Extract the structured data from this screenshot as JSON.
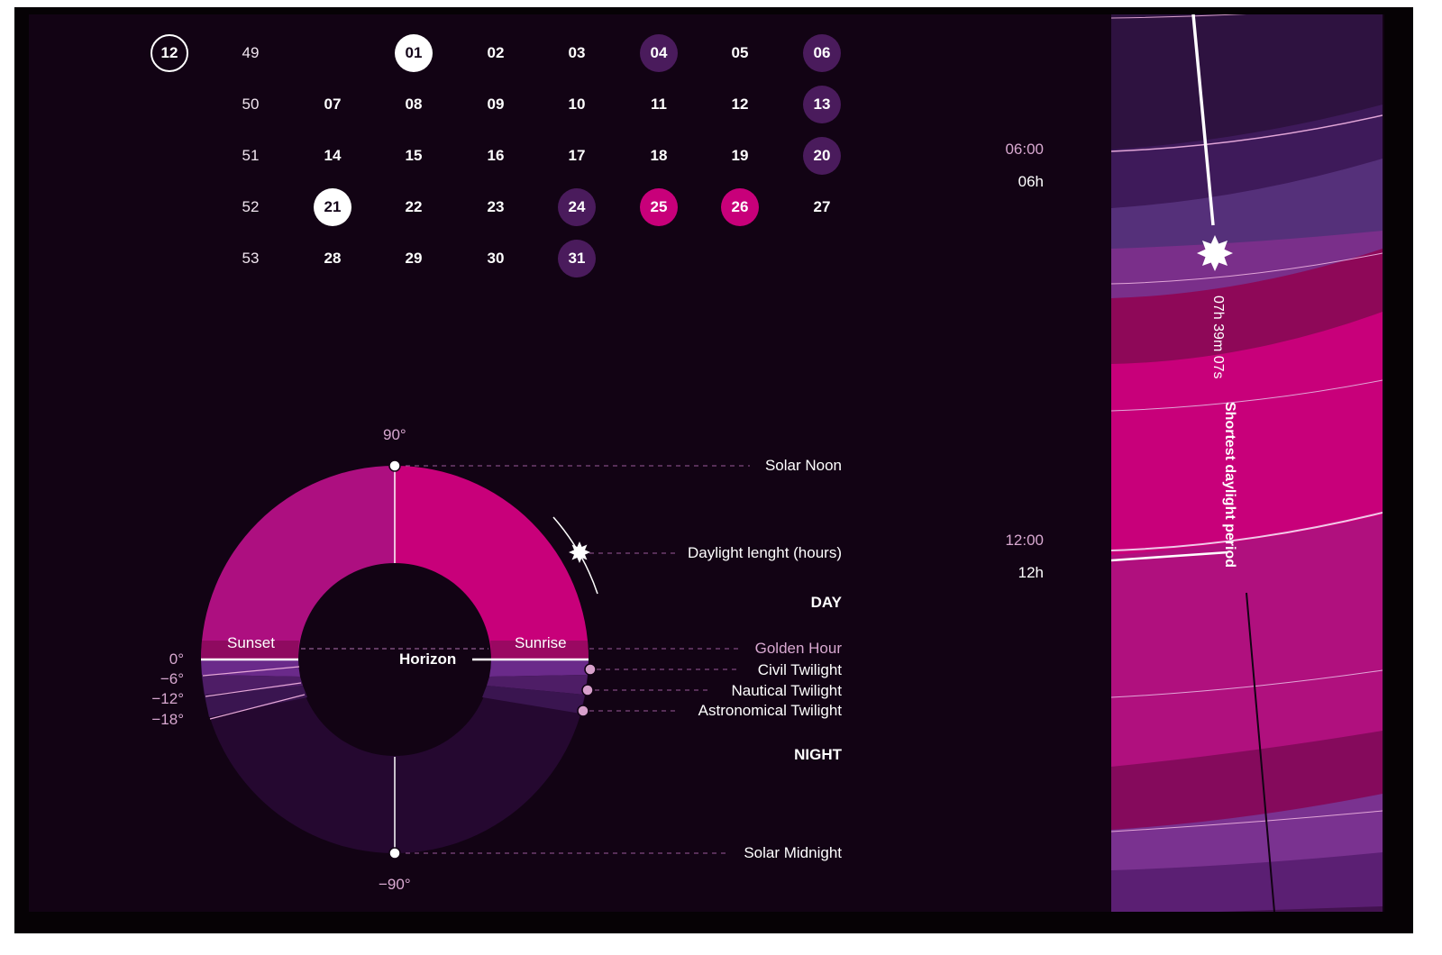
{
  "calendar": {
    "month_badge": "12",
    "rows": [
      {
        "week": "49",
        "days": [
          {
            "d": "",
            "c": ""
          },
          {
            "d": "01",
            "c": "white"
          },
          {
            "d": "02",
            "c": ""
          },
          {
            "d": "03",
            "c": ""
          },
          {
            "d": "04",
            "c": "purple"
          },
          {
            "d": "05",
            "c": ""
          },
          {
            "d": "06",
            "c": "purple"
          }
        ]
      },
      {
        "week": "50",
        "days": [
          {
            "d": "07",
            "c": ""
          },
          {
            "d": "08",
            "c": ""
          },
          {
            "d": "09",
            "c": ""
          },
          {
            "d": "10",
            "c": ""
          },
          {
            "d": "11",
            "c": ""
          },
          {
            "d": "12",
            "c": ""
          },
          {
            "d": "13",
            "c": "purple"
          }
        ]
      },
      {
        "week": "51",
        "days": [
          {
            "d": "14",
            "c": ""
          },
          {
            "d": "15",
            "c": ""
          },
          {
            "d": "16",
            "c": ""
          },
          {
            "d": "17",
            "c": ""
          },
          {
            "d": "18",
            "c": ""
          },
          {
            "d": "19",
            "c": ""
          },
          {
            "d": "20",
            "c": "purple"
          }
        ]
      },
      {
        "week": "52",
        "days": [
          {
            "d": "21",
            "c": "white"
          },
          {
            "d": "22",
            "c": ""
          },
          {
            "d": "23",
            "c": ""
          },
          {
            "d": "24",
            "c": "purple"
          },
          {
            "d": "25",
            "c": "pink"
          },
          {
            "d": "26",
            "c": "pink"
          },
          {
            "d": "27",
            "c": ""
          }
        ]
      },
      {
        "week": "53",
        "days": [
          {
            "d": "28",
            "c": ""
          },
          {
            "d": "29",
            "c": ""
          },
          {
            "d": "30",
            "c": ""
          },
          {
            "d": "31",
            "c": "purple"
          },
          {
            "d": "",
            "c": ""
          },
          {
            "d": "",
            "c": ""
          },
          {
            "d": "",
            "c": ""
          }
        ]
      }
    ]
  },
  "legend": {
    "deg_top": "90°",
    "deg_bottom": "−90°",
    "deg_scale": [
      "0°",
      "−6°",
      "−12°",
      "−18°"
    ],
    "sunset": "Sunset",
    "sunrise": "Sunrise",
    "horizon": "Horizon",
    "solar_noon": "Solar Noon",
    "daylight_length": "Daylight lenght (hours)",
    "day": "DAY",
    "golden_hour": "Golden Hour",
    "civil_twilight": "Civil Twilight",
    "nautical_twilight": "Nautical Twilight",
    "astronomical_twilight": "Astronomical Twilight",
    "night": "NIGHT",
    "solar_midnight": "Solar Midnight"
  },
  "time_axis": [
    {
      "clock": "06:00",
      "hours": "06h"
    },
    {
      "clock": "12:00",
      "hours": "12h"
    }
  ],
  "annotation": {
    "duration": "07h 39m 07s",
    "label": "Shortest daylight period"
  },
  "colors": {
    "background": "#120314",
    "day": "#c8007a",
    "day_dim": "#ad0f80",
    "golden": "#9a0862",
    "civil": "#6a2a8a",
    "nautical": "#4e1d66",
    "astronomical": "#3a1550",
    "night": "#250830"
  }
}
